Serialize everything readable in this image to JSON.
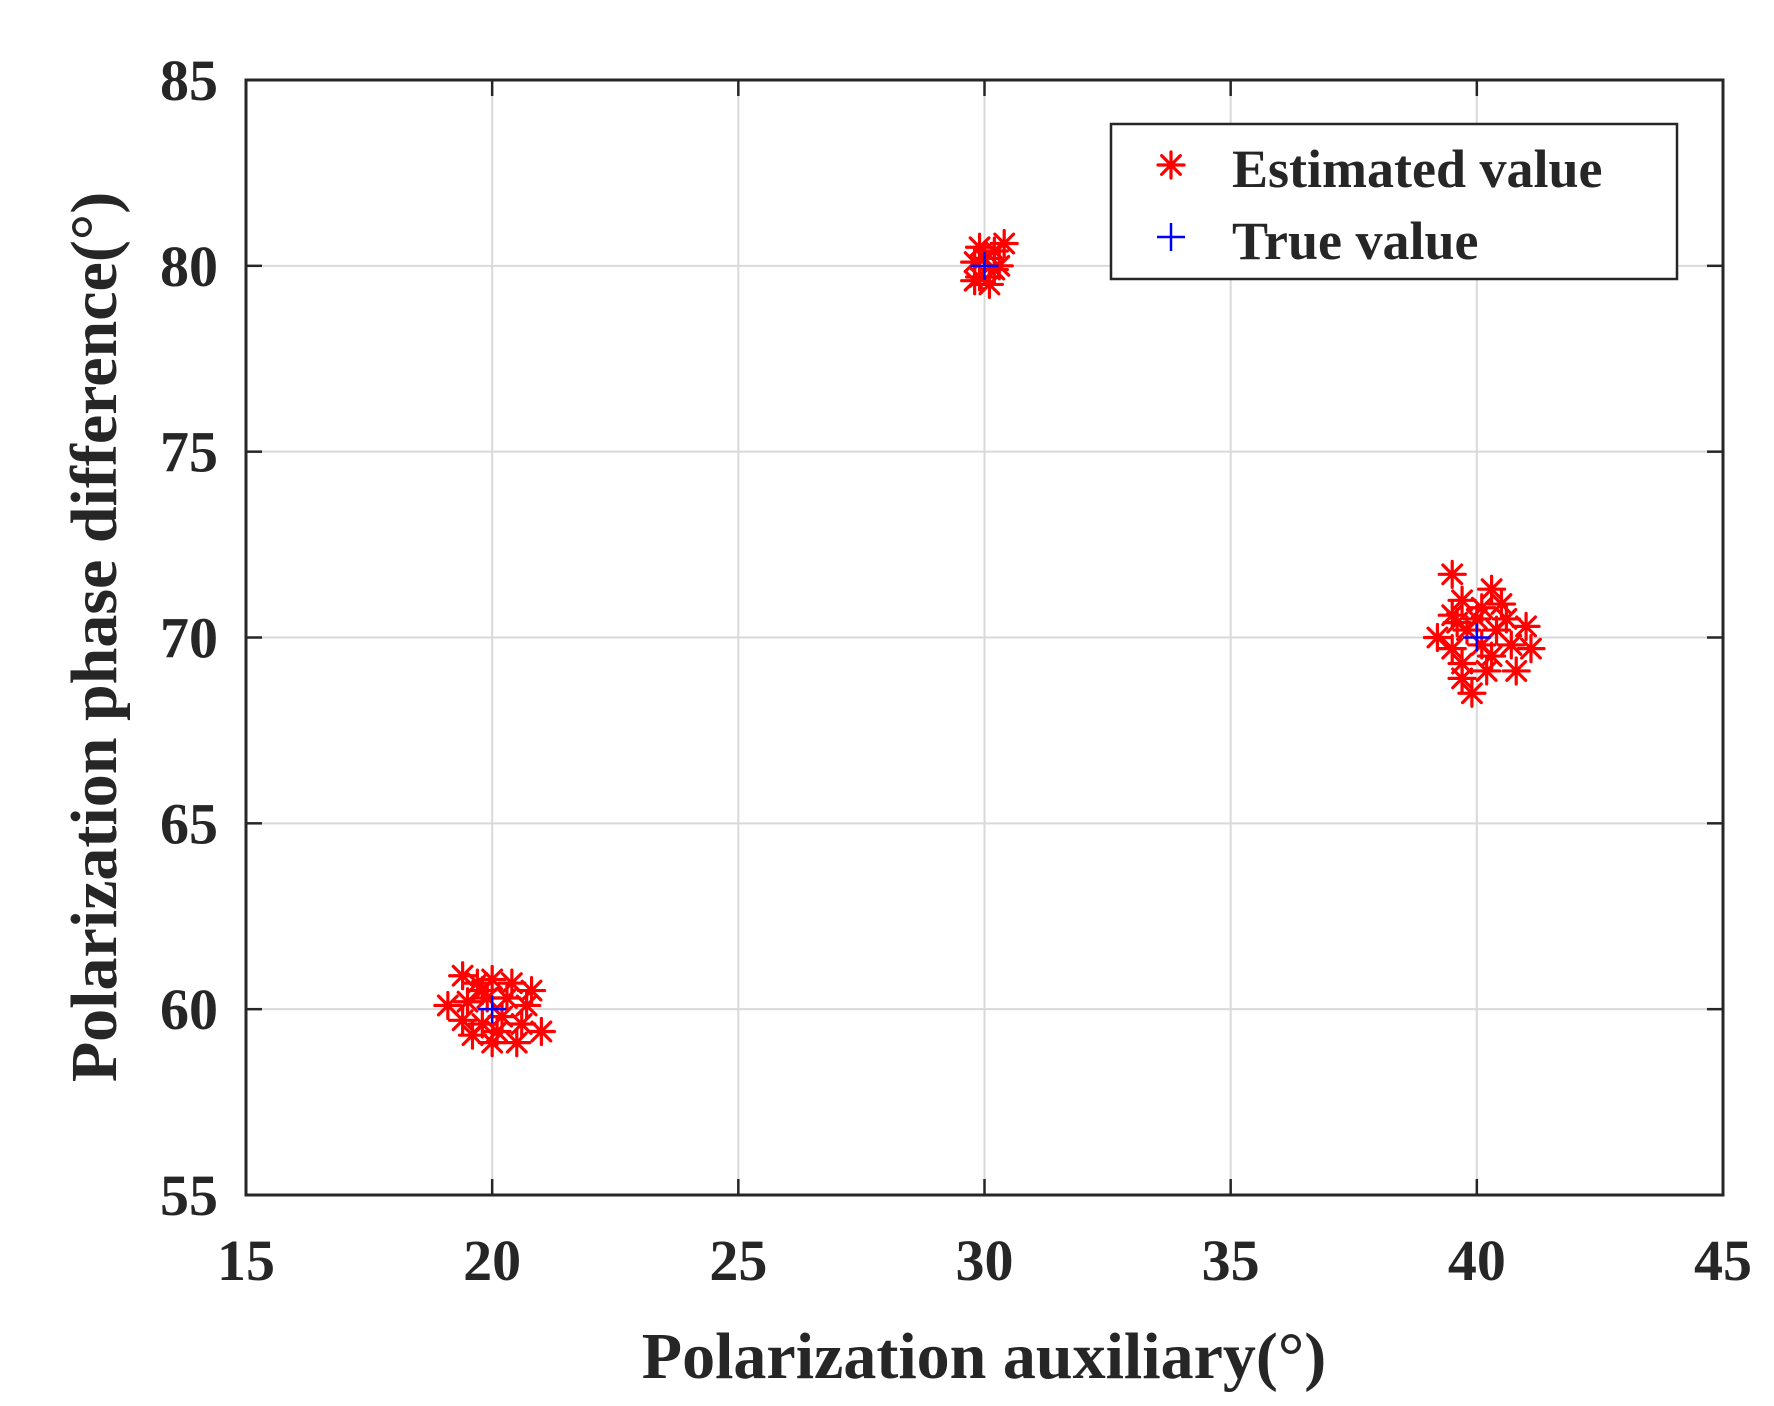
{
  "chart_data": {
    "type": "scatter",
    "title": "",
    "xlabel": "Polarization auxiliary(°)",
    "ylabel": "Polarization phase difference(°)",
    "xlim": [
      15,
      45
    ],
    "ylim": [
      55,
      85
    ],
    "xticks": [
      15,
      20,
      25,
      30,
      35,
      40,
      45
    ],
    "yticks": [
      55,
      60,
      65,
      70,
      75,
      80,
      85
    ],
    "xtick_labels": [
      "15",
      "20",
      "25",
      "30",
      "35",
      "40",
      "45"
    ],
    "ytick_labels": [
      "55",
      "60",
      "65",
      "70",
      "75",
      "80",
      "85"
    ],
    "grid": true,
    "legend_position": "top-right",
    "series": [
      {
        "name": "Estimated value",
        "marker": "asterisk",
        "color": "#ff0000",
        "points": [
          [
            19.4,
            60.9
          ],
          [
            19.7,
            60.7
          ],
          [
            20.0,
            60.8
          ],
          [
            20.4,
            60.7
          ],
          [
            20.8,
            60.5
          ],
          [
            19.1,
            60.1
          ],
          [
            19.5,
            60.2
          ],
          [
            19.9,
            60.3
          ],
          [
            20.3,
            60.3
          ],
          [
            20.7,
            60.1
          ],
          [
            19.4,
            59.7
          ],
          [
            19.8,
            59.6
          ],
          [
            20.2,
            59.8
          ],
          [
            20.6,
            59.6
          ],
          [
            21.0,
            59.4
          ],
          [
            19.6,
            59.3
          ],
          [
            20.0,
            59.1
          ],
          [
            20.5,
            59.1
          ],
          [
            19.8,
            60.5
          ],
          [
            20.1,
            59.4
          ],
          [
            29.9,
            80.5
          ],
          [
            30.2,
            80.4
          ],
          [
            30.4,
            80.6
          ],
          [
            29.8,
            80.1
          ],
          [
            30.3,
            80.0
          ],
          [
            29.9,
            79.7
          ],
          [
            30.1,
            79.5
          ],
          [
            30.2,
            79.9
          ],
          [
            30.0,
            80.2
          ],
          [
            29.8,
            79.6
          ],
          [
            39.5,
            71.7
          ],
          [
            40.3,
            71.3
          ],
          [
            39.7,
            71.0
          ],
          [
            40.1,
            70.8
          ],
          [
            39.5,
            70.6
          ],
          [
            40.6,
            70.5
          ],
          [
            39.2,
            70.0
          ],
          [
            39.8,
            70.2
          ],
          [
            40.4,
            70.2
          ],
          [
            41.0,
            70.3
          ],
          [
            39.5,
            69.7
          ],
          [
            40.1,
            69.8
          ],
          [
            40.7,
            69.8
          ],
          [
            41.1,
            69.7
          ],
          [
            39.7,
            69.3
          ],
          [
            40.3,
            69.5
          ],
          [
            40.8,
            69.1
          ],
          [
            39.7,
            68.9
          ],
          [
            39.9,
            68.5
          ],
          [
            40.2,
            69.1
          ],
          [
            39.6,
            70.4
          ],
          [
            40.5,
            70.9
          ],
          [
            40.0,
            70.5
          ]
        ]
      },
      {
        "name": "True value",
        "marker": "plus",
        "color": "#0000ff",
        "points": [
          [
            20,
            60
          ],
          [
            30,
            80
          ],
          [
            40,
            70
          ]
        ]
      }
    ]
  }
}
